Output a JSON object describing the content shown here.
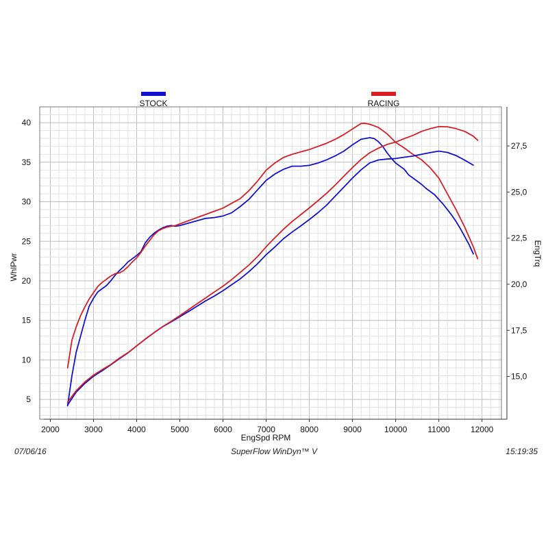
{
  "chart_data": {
    "type": "line",
    "xlabel": "EngSpd  RPM",
    "ylabel_left": "WhlPwr",
    "ylabel_right": "EngTrq",
    "xlim": [
      1850,
      12450
    ],
    "ylim_left": [
      2.5,
      42.0
    ],
    "ylim_right": [
      12.68,
      29.62
    ],
    "x_ticks": [
      2000,
      3000,
      4000,
      5000,
      6000,
      7000,
      8000,
      9000,
      10000,
      11000,
      12000
    ],
    "y_left_ticks": [
      5,
      10,
      15,
      20,
      25,
      30,
      35,
      40
    ],
    "y_right_ticks": [
      "15,0",
      "17,5",
      "20,0",
      "22,5",
      "25,0",
      "27,5"
    ],
    "y_right_tick_values": [
      15.0,
      17.5,
      20.0,
      22.5,
      25.0,
      27.5
    ],
    "grid": true,
    "legend": [
      {
        "name": "STOCK",
        "color": "#1010d0"
      },
      {
        "name": "RACING",
        "color": "#d81c24"
      }
    ],
    "series": [
      {
        "name": "STOCK",
        "measure": "WhlPwr",
        "axis": "left",
        "color": "#1010d0",
        "x": [
          2400,
          2500,
          2600,
          2700,
          2800,
          2900,
          3000,
          3100,
          3200,
          3300,
          3400,
          3500,
          3600,
          3700,
          3800,
          3900,
          4000,
          4100,
          4200,
          4300,
          4400,
          4500,
          4600,
          4700,
          4800,
          4900,
          5000,
          5200,
          5400,
          5600,
          5800,
          6000,
          6200,
          6400,
          6600,
          6800,
          7000,
          7200,
          7400,
          7600,
          7800,
          8000,
          8200,
          8400,
          8600,
          8800,
          9000,
          9200,
          9400,
          9500,
          9600,
          9700,
          9800,
          9900,
          10000,
          10200,
          10300,
          10400,
          10500,
          10600,
          10700,
          10800,
          10900,
          11000,
          11100,
          11200,
          11300,
          11400,
          11500,
          11600,
          11700,
          11800
        ],
        "y": [
          4.2,
          8.0,
          11.0,
          13.0,
          15.0,
          16.8,
          17.8,
          18.6,
          19.0,
          19.4,
          20.0,
          20.7,
          21.3,
          21.8,
          22.4,
          22.8,
          23.2,
          23.7,
          24.8,
          25.5,
          26.0,
          26.4,
          26.7,
          26.9,
          27.0,
          26.9,
          27.0,
          27.3,
          27.6,
          27.9,
          28.0,
          28.2,
          28.6,
          29.4,
          30.3,
          31.5,
          32.7,
          33.5,
          34.1,
          34.5,
          34.5,
          34.6,
          34.9,
          35.3,
          35.8,
          36.4,
          37.2,
          37.9,
          38.1,
          38.0,
          37.6,
          37.0,
          36.2,
          35.5,
          34.9,
          34.1,
          33.4,
          33.0,
          32.6,
          32.2,
          31.7,
          31.3,
          30.9,
          30.3,
          29.7,
          29.0,
          28.3,
          27.5,
          26.6,
          25.6,
          24.6,
          23.4
        ]
      },
      {
        "name": "RACING",
        "measure": "WhlPwr",
        "axis": "left",
        "color": "#d81c24",
        "x": [
          2400,
          2500,
          2600,
          2700,
          2800,
          2900,
          3000,
          3100,
          3200,
          3300,
          3400,
          3500,
          3600,
          3700,
          3800,
          3900,
          4000,
          4100,
          4200,
          4300,
          4400,
          4500,
          4600,
          4700,
          4800,
          4900,
          5000,
          5200,
          5400,
          5600,
          5800,
          6000,
          6200,
          6400,
          6600,
          6800,
          7000,
          7200,
          7400,
          7600,
          7800,
          8000,
          8200,
          8400,
          8600,
          8800,
          9000,
          9200,
          9300,
          9400,
          9500,
          9600,
          9800,
          10000,
          10200,
          10400,
          10600,
          10800,
          11000,
          11200,
          11400,
          11600,
          11800,
          11900
        ],
        "y": [
          9.0,
          12.5,
          14.2,
          15.6,
          16.7,
          17.7,
          18.5,
          19.3,
          19.8,
          20.2,
          20.6,
          20.9,
          21.0,
          21.3,
          21.8,
          22.4,
          22.9,
          23.6,
          24.4,
          25.1,
          25.8,
          26.3,
          26.6,
          26.8,
          26.9,
          27.0,
          27.2,
          27.6,
          28.0,
          28.4,
          28.8,
          29.2,
          29.8,
          30.4,
          31.4,
          32.6,
          34.0,
          34.9,
          35.6,
          36.0,
          36.3,
          36.6,
          37.0,
          37.4,
          37.9,
          38.5,
          39.2,
          39.9,
          39.9,
          39.8,
          39.6,
          39.4,
          38.6,
          37.5,
          36.8,
          36.0,
          35.3,
          34.3,
          33.0,
          31.0,
          29.0,
          26.8,
          24.3,
          22.8
        ]
      },
      {
        "name": "STOCK",
        "measure": "EngTrq",
        "axis": "right",
        "color": "#1010d0",
        "x": [
          2400,
          2600,
          2800,
          3000,
          3200,
          3400,
          3600,
          3800,
          4000,
          4200,
          4400,
          4600,
          4800,
          5000,
          5200,
          5400,
          5600,
          5800,
          6000,
          6200,
          6400,
          6600,
          6800,
          7000,
          7200,
          7400,
          7600,
          7800,
          8000,
          8200,
          8400,
          8600,
          8800,
          9000,
          9200,
          9400,
          9600,
          9800,
          10000,
          10200,
          10400,
          10600,
          10800,
          11000,
          11200,
          11400,
          11600,
          11800
        ],
        "y": [
          13.45,
          14.15,
          14.62,
          15.01,
          15.31,
          15.63,
          15.96,
          16.28,
          16.66,
          17.02,
          17.37,
          17.69,
          17.96,
          18.24,
          18.52,
          18.81,
          19.1,
          19.36,
          19.65,
          19.97,
          20.29,
          20.68,
          21.11,
          21.6,
          22.02,
          22.47,
          22.83,
          23.16,
          23.51,
          23.88,
          24.29,
          24.78,
          25.27,
          25.76,
          26.21,
          26.58,
          26.74,
          26.79,
          26.82,
          26.89,
          26.95,
          27.05,
          27.14,
          27.22,
          27.15,
          26.98,
          26.73,
          26.46
        ]
      },
      {
        "name": "RACING",
        "measure": "EngTrq",
        "axis": "right",
        "color": "#d81c24",
        "x": [
          2400,
          2600,
          2800,
          3000,
          3200,
          3400,
          3600,
          3800,
          4000,
          4200,
          4400,
          4600,
          4800,
          5000,
          5200,
          5400,
          5600,
          5800,
          6000,
          6200,
          6400,
          6600,
          6800,
          7000,
          7200,
          7400,
          7600,
          7800,
          8000,
          8200,
          8400,
          8600,
          8800,
          9000,
          9200,
          9400,
          9600,
          9800,
          10000,
          10200,
          10400,
          10600,
          10800,
          11000,
          11200,
          11400,
          11600,
          11800,
          11900
        ],
        "y": [
          13.6,
          14.23,
          14.7,
          15.07,
          15.37,
          15.65,
          15.99,
          16.29,
          16.66,
          17.03,
          17.37,
          17.7,
          17.99,
          18.3,
          18.62,
          18.94,
          19.26,
          19.58,
          19.89,
          20.25,
          20.64,
          21.04,
          21.5,
          22.03,
          22.52,
          22.98,
          23.4,
          23.77,
          24.14,
          24.53,
          24.93,
          25.38,
          25.86,
          26.33,
          26.77,
          27.13,
          27.38,
          27.58,
          27.71,
          27.9,
          28.07,
          28.29,
          28.44,
          28.55,
          28.54,
          28.44,
          28.29,
          28.03,
          27.81
        ]
      }
    ]
  },
  "footer": {
    "date": "07/06/16",
    "software": "SuperFlow WinDyn™ V",
    "time": "15:19:35"
  }
}
